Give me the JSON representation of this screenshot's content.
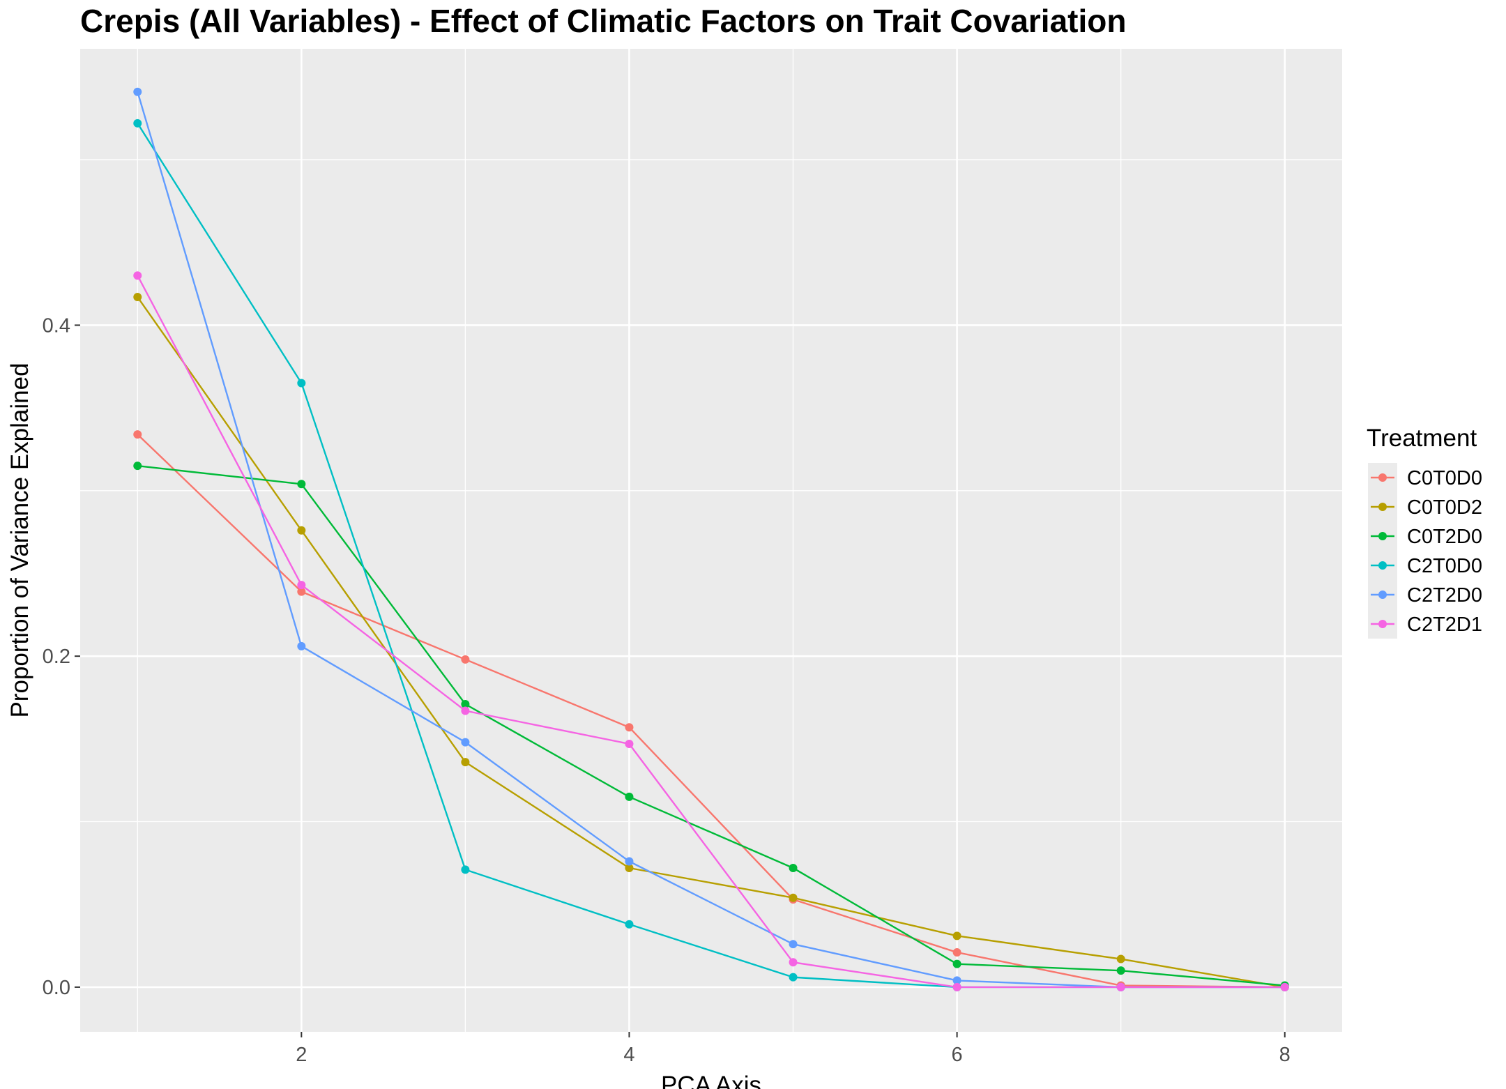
{
  "chart_data": {
    "type": "line",
    "title": "Crepis (All Variables) - Effect of Climatic Factors on Trait Covariation",
    "xlabel": "PCA Axis",
    "ylabel": "Proportion of Variance Explained",
    "x": [
      1,
      2,
      3,
      4,
      5,
      6,
      7,
      8
    ],
    "xlim": [
      0.65,
      8.35
    ],
    "ylim": [
      -0.027,
      0.567
    ],
    "x_ticks": [
      2,
      4,
      6,
      8
    ],
    "x_tick_labels": [
      "2",
      "4",
      "6",
      "8"
    ],
    "y_ticks": [
      0.0,
      0.2,
      0.4
    ],
    "y_tick_labels": [
      "0.0",
      "0.2",
      "0.4"
    ],
    "grid": true,
    "legend_title": "Treatment",
    "legend_position": "right",
    "series": [
      {
        "name": "C0T0D0",
        "color": "#F8766D",
        "values": [
          0.334,
          0.239,
          0.198,
          0.157,
          0.053,
          0.021,
          0.001,
          0.0
        ]
      },
      {
        "name": "C0T0D2",
        "color": "#B79F00",
        "values": [
          0.417,
          0.276,
          0.136,
          0.072,
          0.054,
          0.031,
          0.017,
          0.0
        ]
      },
      {
        "name": "C0T2D0",
        "color": "#00BA38",
        "values": [
          0.315,
          0.304,
          0.171,
          0.115,
          0.072,
          0.014,
          0.01,
          0.001
        ]
      },
      {
        "name": "C2T0D0",
        "color": "#00BFC4",
        "values": [
          0.522,
          0.365,
          0.071,
          0.038,
          0.006,
          0.0,
          0.0,
          0.0
        ]
      },
      {
        "name": "C2T2D0",
        "color": "#619CFF",
        "values": [
          0.541,
          0.206,
          0.148,
          0.076,
          0.026,
          0.004,
          0.0,
          0.0
        ]
      },
      {
        "name": "C2T2D1",
        "color": "#F564E3",
        "values": [
          0.43,
          0.243,
          0.167,
          0.147,
          0.015,
          0.0,
          0.0,
          0.0
        ]
      }
    ]
  }
}
